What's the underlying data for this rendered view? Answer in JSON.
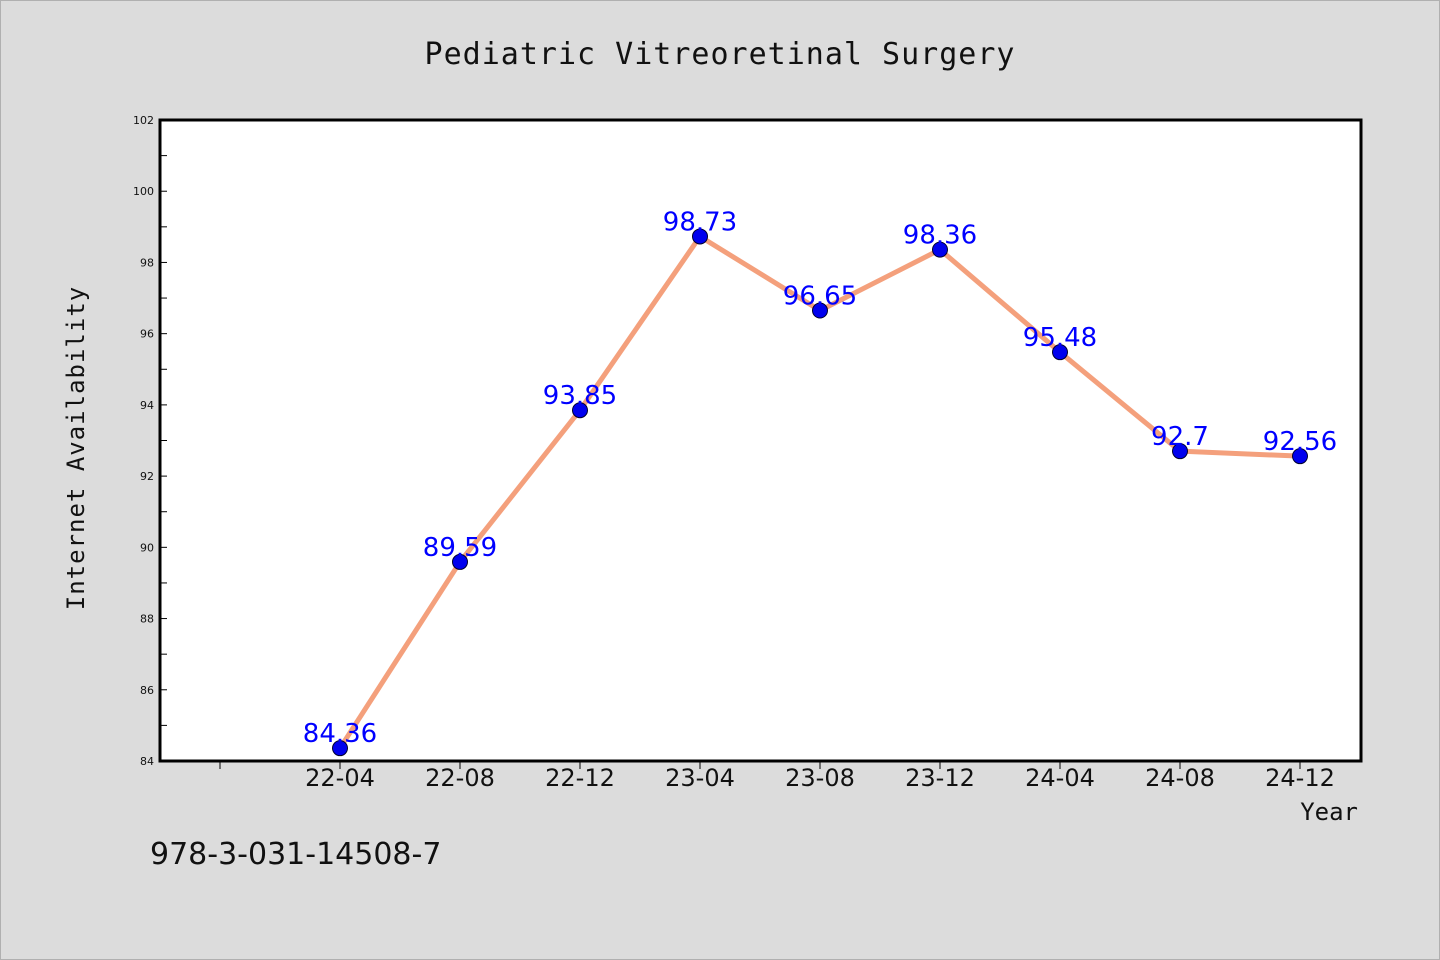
{
  "chart_data": {
    "type": "line",
    "title": "Pediatric Vitreoretinal Surgery",
    "xlabel": "Year",
    "ylabel": "Internet Availability",
    "categories": [
      "22-04",
      "22-08",
      "22-12",
      "23-04",
      "23-08",
      "23-12",
      "24-04",
      "24-08",
      "24-12"
    ],
    "series": [
      {
        "values": [
          84.36,
          89.59,
          93.85,
          98.73,
          96.65,
          98.36,
          95.48,
          92.7,
          92.56
        ],
        "value_labels": [
          "84.36",
          "89.59",
          "93.85",
          "98.73",
          "96.65",
          "98.36",
          "95.48",
          "92.7",
          "92.56"
        ],
        "line_color": "#f4a07c",
        "marker_color": "#0000ee"
      }
    ],
    "ylim": [
      84,
      102
    ],
    "yticks": [
      84,
      86,
      88,
      90,
      92,
      94,
      96,
      98,
      100,
      102
    ],
    "grid": false,
    "label_color": "#0000ff"
  },
  "footer_text": "978-3-031-14508-7",
  "colors": {
    "background": "#dcdcdc",
    "plot_background": "#ffffff",
    "axis": "#000000"
  }
}
